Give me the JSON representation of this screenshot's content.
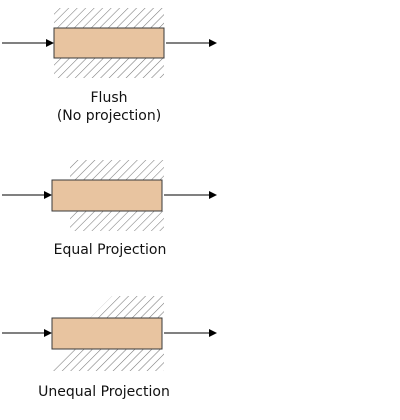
{
  "colors": {
    "bar_fill": "#e8c4a0",
    "bar_stroke": "#3a3a3a",
    "hatch_stroke": "#7a7a7a",
    "arrow": "#000000",
    "text": "#111111"
  },
  "panels": [
    {
      "id": "flush",
      "caption_line1": "Flush",
      "caption_line2": "(No projection)"
    },
    {
      "id": "equal",
      "caption_line1": "Equal Projection"
    },
    {
      "id": "unequal",
      "caption_line1": "Unequal Projection"
    }
  ]
}
